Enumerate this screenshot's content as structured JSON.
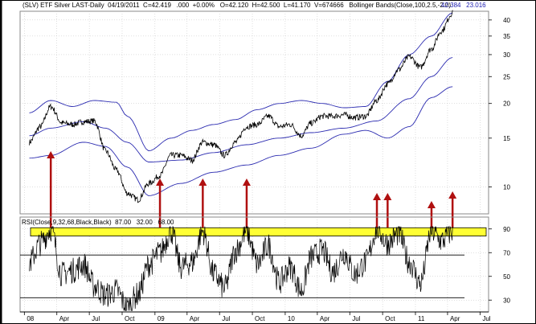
{
  "header": {
    "symbol": "(SLV)",
    "name": "ETF Silver",
    "series": "LAST-Daily",
    "date": "04/19/2011",
    "close": "C=42.419",
    "change": ".000",
    "change_pct": "+0.00%",
    "open": "O=42.120",
    "high": "H=42.500",
    "low": "L=41.170",
    "volume": "V=674666",
    "indicator": "Bollinger Bands(Close,100,2.5,-2.0)",
    "upper_value": "42.384",
    "lower_value": "23.016"
  },
  "rsi_header": {
    "text": "RSI(Close,9,32,68,Black,Black)",
    "v1": "87.00",
    "v2": "32.00",
    "v3": "68.00"
  },
  "colors": {
    "price": "#000000",
    "bands": "#2b2bb0",
    "arrows": "#b01010",
    "highlight": "#ffff33",
    "grid": "#bfbfbf"
  },
  "chart_data": [
    {
      "type": "line",
      "scale": "log",
      "ylim": [
        8,
        43
      ],
      "y_ticks": [
        10,
        15,
        20,
        25,
        30,
        35,
        40
      ],
      "x_labels": [
        "08",
        "Apr",
        "Jul",
        "Oct",
        "09",
        "Apr",
        "Jul",
        "Oct",
        "10",
        "Apr",
        "Jul",
        "Oct",
        "11",
        "Apr",
        "Jul"
      ],
      "grid": true,
      "series": [
        {
          "role": "price",
          "x": [
            "2008-01",
            "2008-02",
            "2008-03",
            "2008-04",
            "2008-05",
            "2008-06",
            "2008-07",
            "2008-08",
            "2008-09",
            "2008-10",
            "2008-11",
            "2008-12",
            "2009-01",
            "2009-02",
            "2009-03",
            "2009-04",
            "2009-05",
            "2009-06",
            "2009-07",
            "2009-08",
            "2009-09",
            "2009-10",
            "2009-11",
            "2009-12",
            "2010-01",
            "2010-02",
            "2010-03",
            "2010-04",
            "2010-05",
            "2010-06",
            "2010-07",
            "2010-08",
            "2010-09",
            "2010-10",
            "2010-11",
            "2010-12",
            "2011-01",
            "2011-02",
            "2011-03",
            "2011-04"
          ],
          "values": [
            14.5,
            16.5,
            19.5,
            17.0,
            16.8,
            17.2,
            17.3,
            13.5,
            11.5,
            9.5,
            9.0,
            10.3,
            11.0,
            13.0,
            13.0,
            12.5,
            14.5,
            14.2,
            13.0,
            14.5,
            16.5,
            16.8,
            18.0,
            16.5,
            16.8,
            15.3,
            17.0,
            18.0,
            18.0,
            18.2,
            17.8,
            18.0,
            20.5,
            23.5,
            26.5,
            29.5,
            27.0,
            31.5,
            36.5,
            42.4
          ]
        },
        {
          "role": "upper-band",
          "x": [
            "2008-01",
            "2008-03",
            "2008-05",
            "2008-07",
            "2008-09",
            "2008-10",
            "2008-12",
            "2009-02",
            "2009-04",
            "2009-06",
            "2009-08",
            "2009-10",
            "2009-12",
            "2010-02",
            "2010-04",
            "2010-06",
            "2010-08",
            "2010-10",
            "2010-12",
            "2011-02",
            "2011-04"
          ],
          "values": [
            18.5,
            20.5,
            19.5,
            20.5,
            20.2,
            18.0,
            13.5,
            15.0,
            16.0,
            16.8,
            17.5,
            19.0,
            20.0,
            20.5,
            20.0,
            19.3,
            19.5,
            24.0,
            30.0,
            35.0,
            42.4
          ]
        },
        {
          "role": "middle-band",
          "x": [
            "2008-01",
            "2008-03",
            "2008-06",
            "2008-08",
            "2008-10",
            "2008-12",
            "2009-03",
            "2009-06",
            "2009-09",
            "2009-12",
            "2010-03",
            "2010-06",
            "2010-09",
            "2010-12",
            "2011-02",
            "2011-04"
          ],
          "values": [
            15.3,
            16.3,
            17.2,
            16.3,
            14.5,
            12.3,
            12.5,
            13.3,
            14.2,
            15.0,
            15.7,
            16.3,
            17.3,
            20.8,
            25.0,
            29.3
          ]
        },
        {
          "role": "lower-band",
          "x": [
            "2008-01",
            "2008-03",
            "2008-06",
            "2008-08",
            "2008-10",
            "2008-12",
            "2009-03",
            "2009-06",
            "2009-09",
            "2009-12",
            "2010-03",
            "2010-06",
            "2010-08",
            "2010-10",
            "2010-12",
            "2011-02",
            "2011-04"
          ],
          "values": [
            12.7,
            13.0,
            14.5,
            14.0,
            11.8,
            9.3,
            10.3,
            11.3,
            12.0,
            13.0,
            13.8,
            15.5,
            16.0,
            15.0,
            16.5,
            21.0,
            23.0
          ]
        }
      ],
      "annotations": {
        "arrows": [
          "2008-03",
          "2009-01",
          "2009-05",
          "2009-09",
          "2010-09",
          "2010-10",
          "2011-02",
          "2011-04"
        ]
      }
    },
    {
      "type": "line",
      "ylim": [
        20,
        100
      ],
      "y_ticks": [
        30,
        50,
        70,
        90
      ],
      "reference_lines": [
        32,
        68
      ],
      "highlight_band": [
        84,
        91
      ],
      "series": [
        {
          "role": "rsi",
          "x": [
            "2008-01",
            "2008-02",
            "2008-03",
            "2008-04",
            "2008-05",
            "2008-06",
            "2008-07",
            "2008-08",
            "2008-09",
            "2008-10",
            "2008-11",
            "2008-12",
            "2009-01",
            "2009-02",
            "2009-03",
            "2009-04",
            "2009-05",
            "2009-06",
            "2009-07",
            "2009-08",
            "2009-09",
            "2009-10",
            "2009-11",
            "2009-12",
            "2010-01",
            "2010-02",
            "2010-03",
            "2010-04",
            "2010-05",
            "2010-06",
            "2010-07",
            "2010-08",
            "2010-09",
            "2010-10",
            "2010-11",
            "2010-12",
            "2011-01",
            "2011-02",
            "2011-03",
            "2011-04"
          ],
          "values": [
            62,
            78,
            90,
            52,
            55,
            60,
            42,
            34,
            38,
            24,
            35,
            60,
            70,
            88,
            58,
            62,
            88,
            52,
            40,
            72,
            88,
            60,
            76,
            45,
            58,
            38,
            66,
            72,
            54,
            70,
            52,
            62,
            90,
            78,
            86,
            62,
            44,
            88,
            80,
            88
          ]
        }
      ]
    }
  ]
}
